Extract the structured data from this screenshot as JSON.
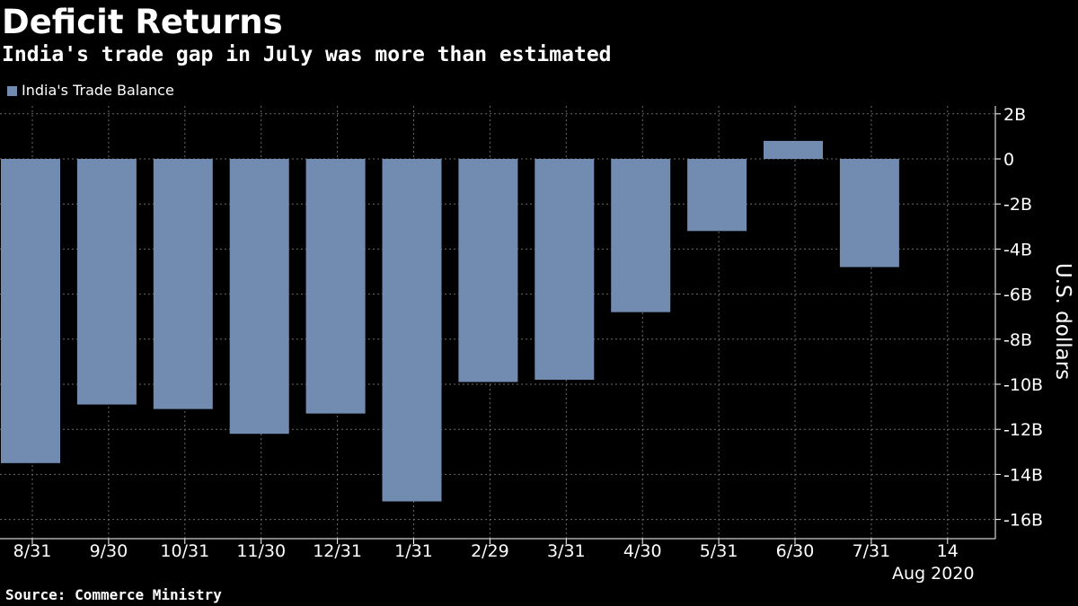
{
  "title": "Deficit Returns",
  "subtitle": "India's trade gap in July was more than estimated",
  "source": "Source: Commerce Ministry",
  "colors": {
    "background": "#000000",
    "bar": "#728bb0",
    "grid": "#6a6a6a",
    "text": "#ffffff"
  },
  "chart_data": {
    "type": "bar",
    "title": "Deficit Returns",
    "subtitle": "India's trade gap in July was more than estimated",
    "categories": [
      "8/31",
      "9/30",
      "10/31",
      "11/30",
      "12/31",
      "1/31",
      "2/29",
      "3/31",
      "4/30",
      "5/31",
      "6/30",
      "7/31"
    ],
    "x_ticks": [
      "8/31",
      "9/30",
      "10/31",
      "11/30",
      "12/31",
      "1/31",
      "2/29",
      "3/31",
      "4/30",
      "5/31",
      "6/30",
      "7/31",
      "14"
    ],
    "x_sublabel": "Aug 2020",
    "series": [
      {
        "name": "India's Trade Balance",
        "values": [
          -13.5,
          -10.9,
          -11.1,
          -12.2,
          -11.3,
          -15.2,
          -9.9,
          -9.8,
          -6.8,
          -3.2,
          0.8,
          -4.8
        ]
      }
    ],
    "ylabel": "U.S. dollars",
    "ylim": [
      -16.5,
      2.5
    ],
    "y_ticks": [
      {
        "value": 2,
        "label": "2B"
      },
      {
        "value": 0,
        "label": "0"
      },
      {
        "value": -2,
        "label": "-2B"
      },
      {
        "value": -4,
        "label": "-4B"
      },
      {
        "value": -6,
        "label": "-6B"
      },
      {
        "value": -8,
        "label": "-8B"
      },
      {
        "value": -10,
        "label": "-10B"
      },
      {
        "value": -12,
        "label": "-12B"
      },
      {
        "value": -14,
        "label": "-14B"
      },
      {
        "value": -16,
        "label": "-16B"
      }
    ],
    "grid": true,
    "legend_position": "top-left",
    "y_axis_side": "right"
  }
}
